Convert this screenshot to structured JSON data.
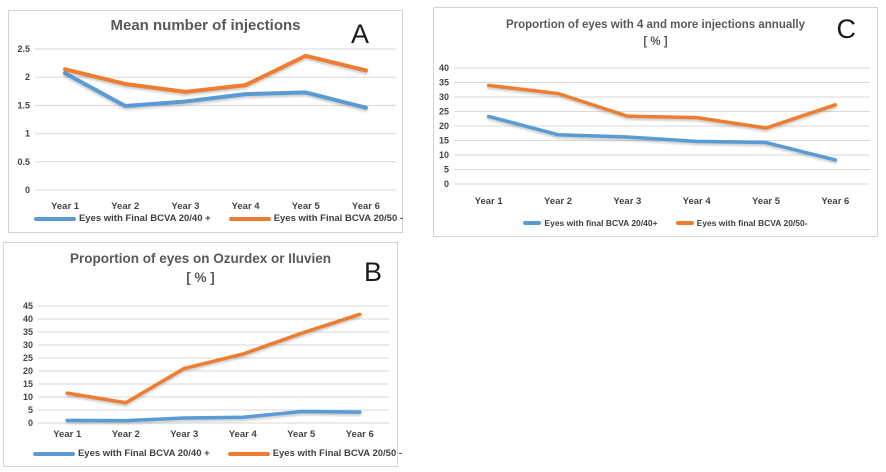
{
  "palette": {
    "series_blue": "#5B9BD5",
    "series_orange": "#ED7D31",
    "grid": "#D9D9D9",
    "title_gray": "#595959",
    "label_gray": "#404040"
  },
  "chart_data": [
    {
      "type": "line",
      "panel_label": "A",
      "title": "Mean number of injections",
      "subtitle": "",
      "categories": [
        "Year 1",
        "Year 2",
        "Year 3",
        "Year 4",
        "Year 5",
        "Year 6"
      ],
      "ylim": [
        0,
        2.5
      ],
      "yticks": [
        0,
        0.5,
        1,
        1.5,
        2,
        2.5
      ],
      "grid": true,
      "legend_position": "bottom",
      "series": [
        {
          "name": "Eyes with Final BCVA 20/40 +",
          "color": "#5B9BD5",
          "values": [
            2.07,
            1.49,
            1.57,
            1.7,
            1.73,
            1.46
          ]
        },
        {
          "name": "Eyes with Final BCVA 20/50 -",
          "color": "#ED7D31",
          "values": [
            2.14,
            1.88,
            1.74,
            1.86,
            2.38,
            2.12
          ]
        }
      ]
    },
    {
      "type": "line",
      "panel_label": "B",
      "title": "Proportion of eyes on Ozurdex or Iluvien",
      "subtitle": "[ % ]",
      "categories": [
        "Year 1",
        "Year 2",
        "Year 3",
        "Year 4",
        "Year 5",
        "Year 6"
      ],
      "ylim": [
        0,
        45
      ],
      "yticks": [
        0,
        5,
        10,
        15,
        20,
        25,
        30,
        35,
        40,
        45
      ],
      "grid": true,
      "legend_position": "bottom",
      "series": [
        {
          "name": "Eyes with Final BCVA 20/40 +",
          "color": "#5B9BD5",
          "values": [
            1,
            0.9,
            1.9,
            2.2,
            4.4,
            4.2
          ]
        },
        {
          "name": "Eyes with Final BCVA 20/50 -",
          "color": "#ED7D31",
          "values": [
            11.5,
            7.8,
            21,
            26.5,
            34.5,
            41.8
          ]
        }
      ]
    },
    {
      "type": "line",
      "panel_label": "C",
      "title": "Proportion of eyes with 4 and more injections annually",
      "subtitle": "[ % ]",
      "categories": [
        "Year 1",
        "Year 2",
        "Year 3",
        "Year 4",
        "Year 5",
        "Year 6"
      ],
      "ylim": [
        0,
        40
      ],
      "yticks": [
        0,
        5,
        10,
        15,
        20,
        25,
        30,
        35,
        40
      ],
      "grid": true,
      "legend_position": "bottom",
      "series": [
        {
          "name": "Eyes with final BCVA 20/40+",
          "color": "#5B9BD5",
          "values": [
            23.3,
            17,
            16.2,
            14.7,
            14.3,
            8.3
          ]
        },
        {
          "name": "Eyes with final BCVA 20/50-",
          "color": "#ED7D31",
          "values": [
            34,
            31.2,
            23.4,
            22.9,
            19.3,
            27.3
          ]
        }
      ]
    }
  ]
}
